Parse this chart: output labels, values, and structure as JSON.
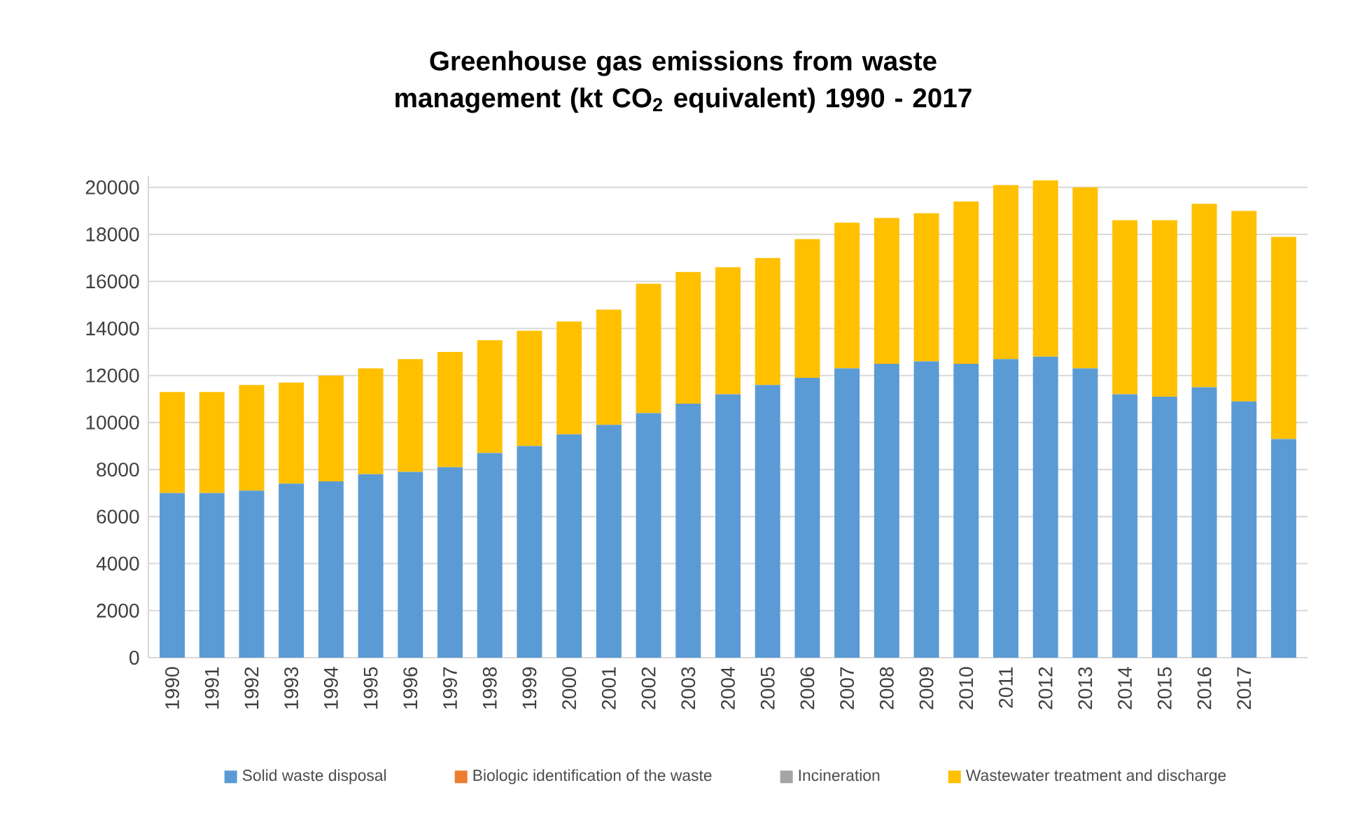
{
  "chart_data": {
    "type": "bar",
    "stacked": true,
    "title": "Greenhouse gas emissions from waste management (kt CO$_{2}$ equivalent) 1990 - 2017",
    "categories": [
      "1990",
      "1991",
      "1992",
      "1993",
      "1994",
      "1995",
      "1996",
      "1997",
      "1998",
      "1999",
      "2000",
      "2001",
      "2002",
      "2003",
      "2004",
      "2005",
      "2006",
      "2007",
      "2008",
      "2009",
      "2010",
      "2011",
      "2012",
      "2013",
      "2014",
      "2015",
      "2016",
      "2017",
      null
    ],
    "series": [
      {
        "name": "Solid waste disposal",
        "color": "#5b9bd5",
        "values": [
          7000,
          7000,
          7100,
          7400,
          7500,
          7800,
          7900,
          8100,
          8700,
          9000,
          9500,
          9900,
          10400,
          10800,
          11200,
          11600,
          11900,
          12300,
          12500,
          12600,
          12500,
          12700,
          12800,
          12300,
          11200,
          11100,
          11500,
          10900,
          9300
        ]
      },
      {
        "name": "Biologic identification of the waste",
        "color": "#ed7d31",
        "values": [
          0,
          0,
          0,
          0,
          0,
          0,
          0,
          0,
          0,
          0,
          0,
          0,
          0,
          0,
          0,
          0,
          0,
          0,
          0,
          0,
          0,
          0,
          0,
          0,
          0,
          0,
          0,
          0,
          0
        ]
      },
      {
        "name": "Incineration",
        "color": "#a5a5a5",
        "values": [
          0,
          0,
          0,
          0,
          0,
          0,
          0,
          0,
          0,
          0,
          0,
          0,
          0,
          0,
          0,
          0,
          0,
          0,
          0,
          0,
          0,
          0,
          0,
          0,
          0,
          0,
          0,
          0,
          0
        ]
      },
      {
        "name": "Wastewater treatment and discharge",
        "color": "#ffc000",
        "values": [
          4300,
          4300,
          4500,
          4300,
          4500,
          4500,
          4800,
          4900,
          4800,
          4900,
          4800,
          4900,
          5500,
          5600,
          5400,
          5400,
          5900,
          6200,
          6200,
          6300,
          6900,
          7400,
          7500,
          7700,
          7400,
          7500,
          7800,
          8100,
          8600
        ]
      }
    ],
    "ylim": [
      0,
      20500
    ],
    "yticks": [
      0,
      2000,
      4000,
      6000,
      8000,
      10000,
      12000,
      14000,
      16000,
      18000,
      20000
    ],
    "grid": "y",
    "legend": "bottom"
  }
}
